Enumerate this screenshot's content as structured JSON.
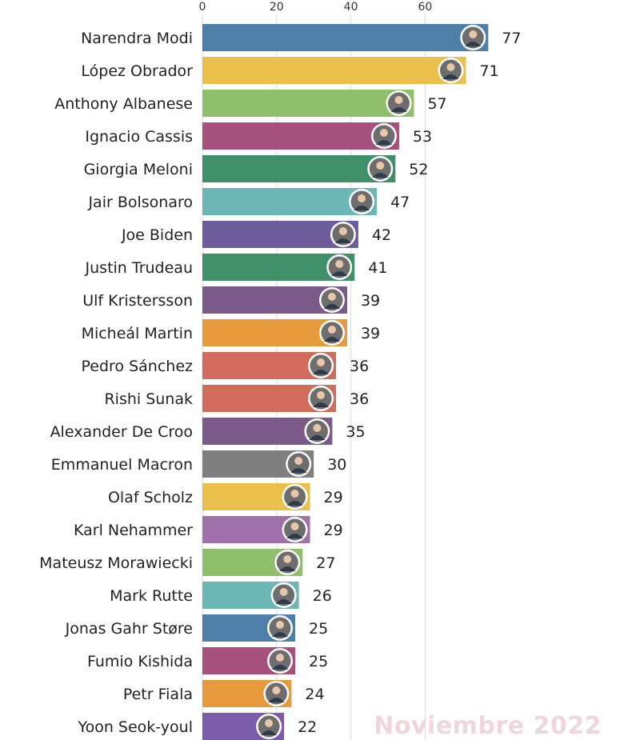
{
  "chart_data": {
    "type": "bar",
    "orientation": "horizontal",
    "title": "",
    "xlabel": "",
    "ylabel": "",
    "xlim": [
      0,
      77
    ],
    "x_ticks": [
      0,
      20,
      40,
      60
    ],
    "grid": true,
    "categories": [
      "Narendra Modi",
      "López Obrador",
      "Anthony Albanese",
      "Ignacio Cassis",
      "Giorgia Meloni",
      "Jair Bolsonaro",
      "Joe Biden",
      "Justin Trudeau",
      "Ulf Kristersson",
      "Micheál Martin",
      "Pedro Sánchez",
      "Rishi Sunak",
      "Alexander De Croo",
      "Emmanuel Macron",
      "Olaf Scholz",
      "Karl Nehammer",
      "Mateusz Morawiecki",
      "Mark Rutte",
      "Jonas Gahr Støre",
      "Fumio Kishida",
      "Petr Fiala",
      "Yoon Seok-youl"
    ],
    "values": [
      77,
      71,
      57,
      53,
      52,
      47,
      42,
      41,
      39,
      39,
      36,
      36,
      35,
      30,
      29,
      29,
      27,
      26,
      25,
      25,
      24,
      22
    ],
    "colors": [
      "#4e7fa8",
      "#eabf4c",
      "#8fbf6a",
      "#a5507d",
      "#3f9068",
      "#6cb7b5",
      "#6c5c9c",
      "#3f9068",
      "#7b5a8a",
      "#e69a3c",
      "#d16c5c",
      "#d16c5c",
      "#7b5a8a",
      "#7f7f7f",
      "#eabf4c",
      "#a070a8",
      "#8fbf6a",
      "#6cb7b5",
      "#4e7fa8",
      "#a5507d",
      "#e69a3c",
      "#7b5ca8"
    ],
    "avatar_icons": "leader-portrait-icon",
    "annotation": "Noviembre 2022"
  }
}
